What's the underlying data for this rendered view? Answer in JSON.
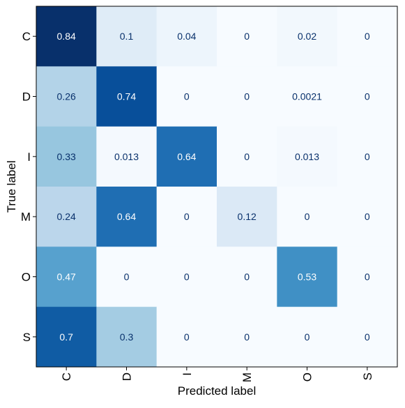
{
  "chart_data": {
    "type": "heatmap",
    "title": "",
    "xlabel": "Predicted label",
    "ylabel": "True label",
    "x_labels": [
      "C",
      "D",
      "I",
      "M",
      "O",
      "S"
    ],
    "y_labels": [
      "C",
      "D",
      "I",
      "M",
      "O",
      "S"
    ],
    "matrix": [
      [
        0.84,
        0.1,
        0.04,
        0,
        0.02,
        0
      ],
      [
        0.26,
        0.74,
        0,
        0,
        0.0021,
        0
      ],
      [
        0.33,
        0.013,
        0.64,
        0,
        0.013,
        0
      ],
      [
        0.24,
        0.64,
        0,
        0.12,
        0,
        0
      ],
      [
        0.47,
        0,
        0,
        0,
        0.53,
        0
      ],
      [
        0.7,
        0.3,
        0,
        0,
        0,
        0
      ]
    ],
    "cell_labels": [
      [
        "0.84",
        "0.1",
        "0.04",
        "0",
        "0.02",
        "0"
      ],
      [
        "0.26",
        "0.74",
        "0",
        "0",
        "0.0021",
        "0"
      ],
      [
        "0.33",
        "0.013",
        "0.64",
        "0",
        "0.013",
        "0"
      ],
      [
        "0.24",
        "0.64",
        "0",
        "0.12",
        "0",
        "0"
      ],
      [
        "0.47",
        "0",
        "0",
        "0",
        "0.53",
        "0"
      ],
      [
        "0.7",
        "0.3",
        "0",
        "0",
        "0",
        "0"
      ]
    ],
    "value_range": [
      0,
      0.84
    ],
    "colormap": "Blues",
    "colors": {
      "low": "#f7fbff",
      "high": "#08306b",
      "text_dark": "#08306b",
      "text_light": "#ffffff"
    },
    "grid": false,
    "legend": "none"
  }
}
